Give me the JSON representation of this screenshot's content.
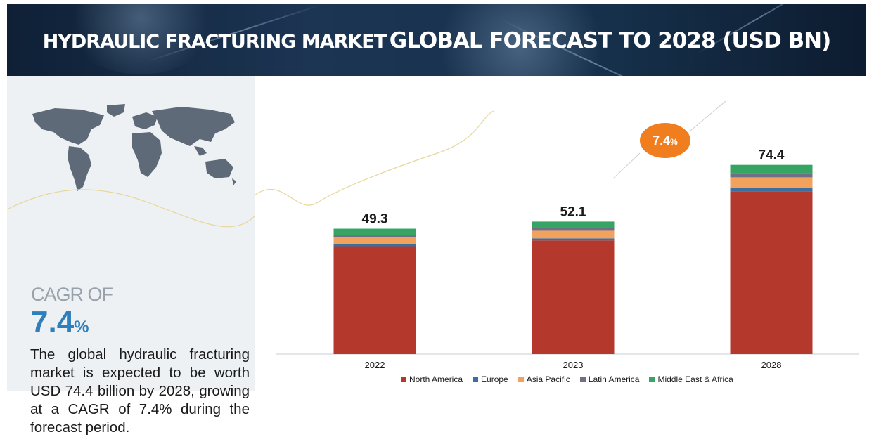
{
  "header": {
    "title_part1": "HYDRAULIC FRACTURING MARKET",
    "title_part2": "GLOBAL FORECAST TO 2028 (USD BN)"
  },
  "side_panel": {
    "cagr_label": "CAGR OF",
    "cagr_value": "7.4",
    "cagr_unit": "%",
    "description": "The global hydraulic fracturing market is expected to be worth USD 74.4 billion by 2028, growing at a CAGR of 7.4% during the forecast period."
  },
  "cagr_bubble": {
    "value": "7.4",
    "unit": "%",
    "color": "#f07e1f"
  },
  "chart_data": {
    "type": "bar",
    "stacked": true,
    "categories": [
      "2022",
      "2023",
      "2028"
    ],
    "totals": [
      49.3,
      52.1,
      74.4
    ],
    "total_labels": [
      "49.3",
      "52.1",
      "74.4"
    ],
    "series": [
      {
        "name": "North America",
        "color": "#b5382d",
        "values": [
          42.4,
          44.7,
          64.0
        ]
      },
      {
        "name": "Europe",
        "color": "#3d6f9e",
        "values": [
          0.7,
          0.8,
          1.2
        ]
      },
      {
        "name": "Asia Pacific",
        "color": "#f3a25d",
        "values": [
          2.8,
          3.0,
          4.3
        ]
      },
      {
        "name": "Latin America",
        "color": "#6f6f86",
        "values": [
          1.0,
          1.1,
          1.6
        ]
      },
      {
        "name": "Middle East & Africa",
        "color": "#36a463",
        "values": [
          2.4,
          2.5,
          3.3
        ]
      }
    ],
    "legend_position": "bottom",
    "grid": false
  }
}
